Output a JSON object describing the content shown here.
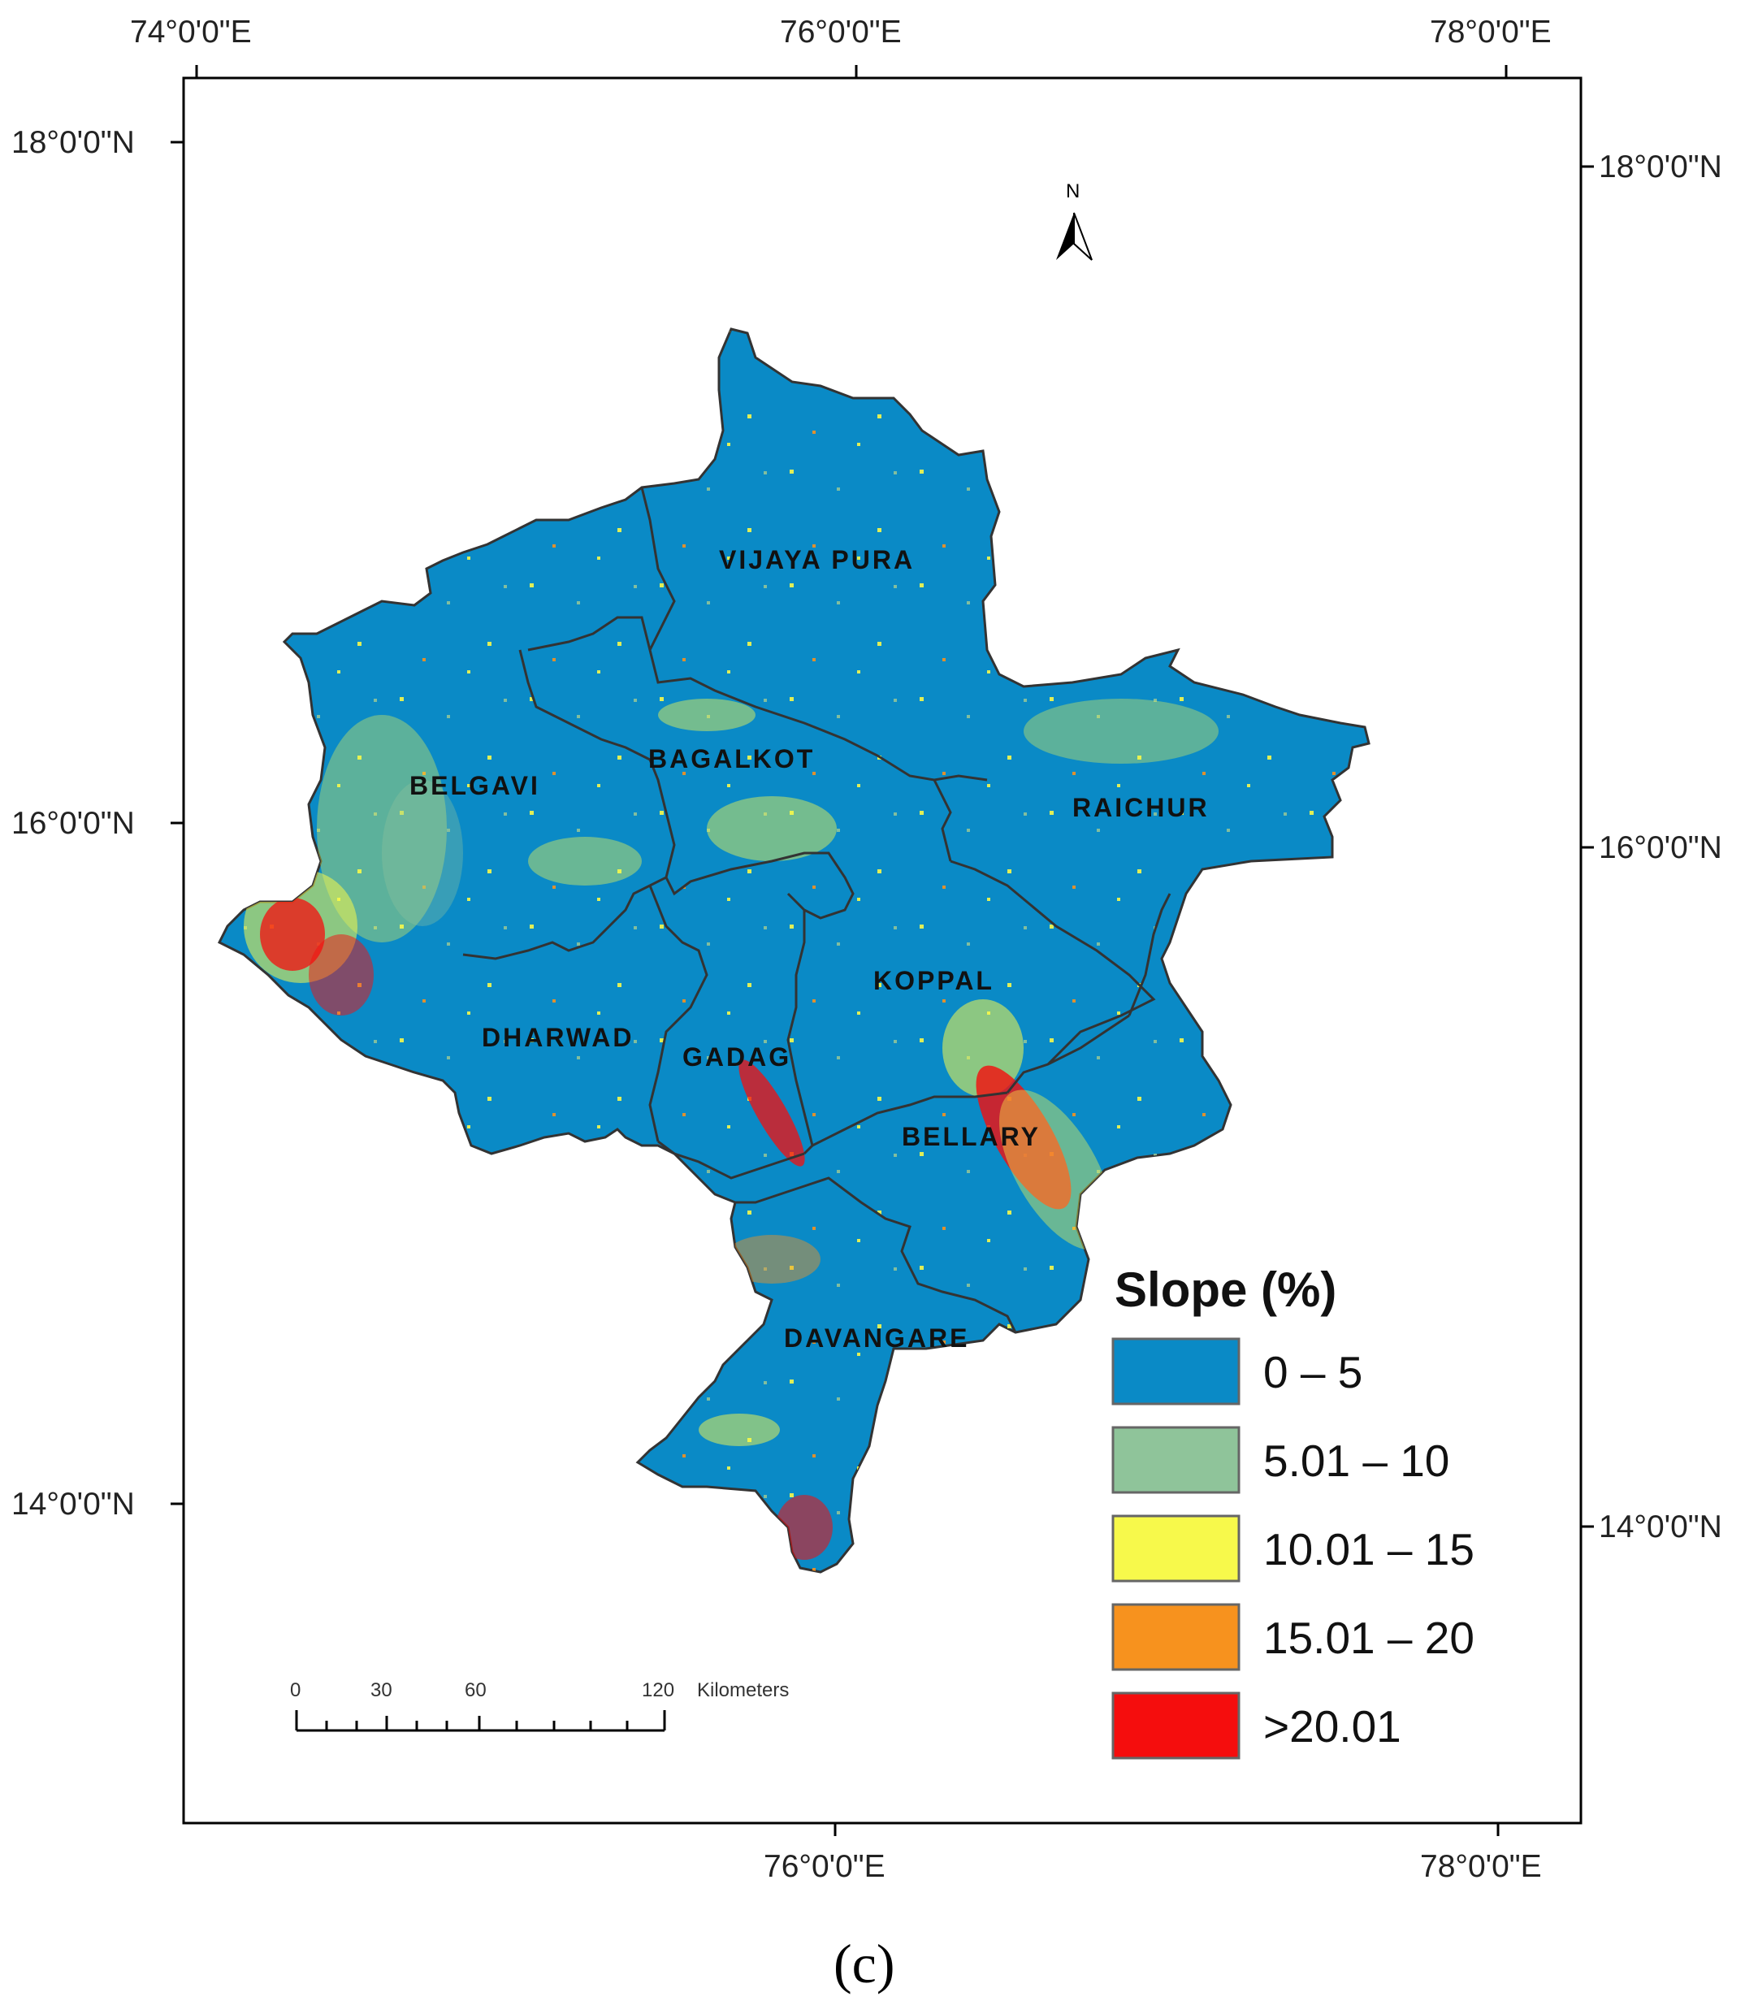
{
  "axes": {
    "top_lon_labels": [
      "74°0'0\"E",
      "76°0'0\"E",
      "78°0'0\"E"
    ],
    "bottom_lon_labels": [
      "76°0'0\"E",
      "78°0'0\"E"
    ],
    "left_lat_labels": [
      "18°0'0\"N",
      "16°0'0\"N",
      "14°0'0\"N"
    ],
    "right_lat_labels": [
      "18°0'0\"N",
      "16°0'0\"N",
      "14°0'0\"N"
    ]
  },
  "north_arrow": {
    "label": "N",
    "icon": "north-arrow-icon"
  },
  "districts": [
    "VIJAYA PURA",
    "BAGALKOT",
    "BELGAVI",
    "RAICHUR",
    "KOPPAL",
    "DHARWAD",
    "GADAG",
    "BELLARY",
    "DAVANGARE"
  ],
  "legend": {
    "title": "Slope (%)",
    "classes": [
      {
        "label": "0 – 5",
        "color": "#0a8ac6"
      },
      {
        "label": "5.01 – 10",
        "color": "#8fc49a"
      },
      {
        "label": "10.01 – 15",
        "color": "#f7f94b"
      },
      {
        "label": "15.01 – 20",
        "color": "#f7921e"
      },
      {
        "label": ">20.01",
        "color": "#f50d0d"
      }
    ]
  },
  "scale_bar": {
    "ticks": [
      "0",
      "30",
      "60",
      "120"
    ],
    "unit": "Kilometers"
  },
  "caption": "(c)"
}
